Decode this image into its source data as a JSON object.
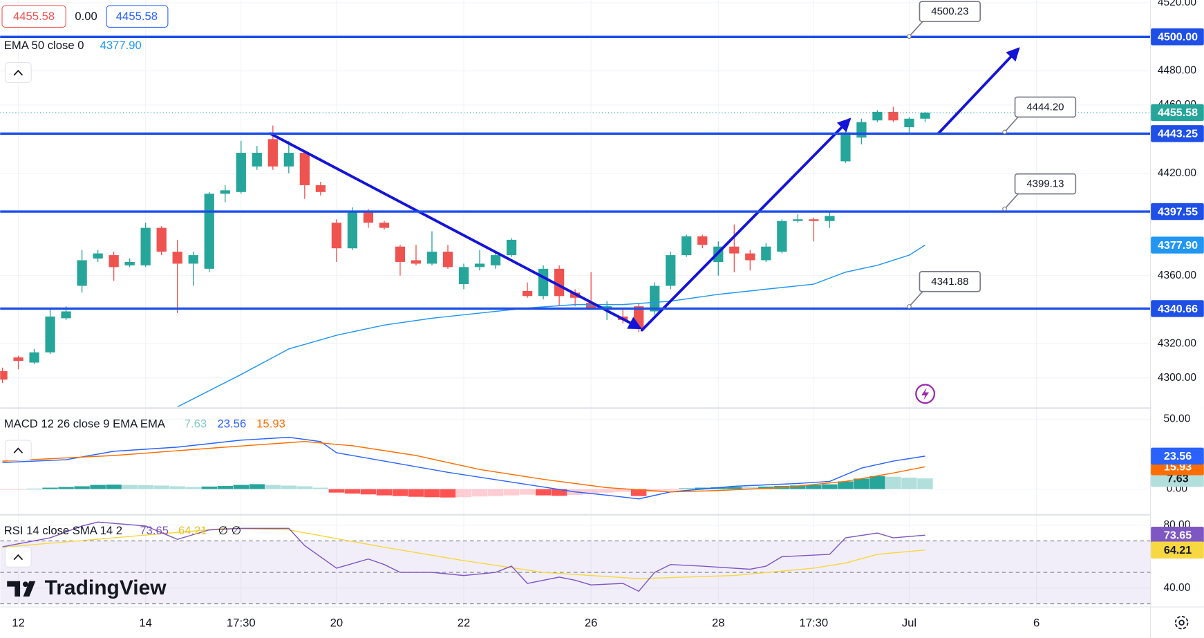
{
  "toolbar": {
    "open_label": "4455.58",
    "change": "0.00",
    "close_label": "4455.58"
  },
  "logo": "TradingView",
  "chart_data": [
    {
      "type": "candlestick",
      "xlim": [
        0,
        72
      ],
      "ylim": [
        4283,
        4521.6
      ],
      "yticks": [
        {
          "value": 4520,
          "label": "4520.00"
        },
        {
          "value": 4480,
          "label": "4480.00"
        },
        {
          "value": 4460,
          "label": "4460.00"
        },
        {
          "value": 4420,
          "label": "4420.00"
        },
        {
          "value": 4360,
          "label": "4360.00"
        },
        {
          "value": 4320,
          "label": "4320.00"
        },
        {
          "value": 4300,
          "label": "4300.00"
        }
      ],
      "xticks": [
        {
          "value": 1,
          "label": "12"
        },
        {
          "value": 9,
          "label": "14"
        },
        {
          "value": 15,
          "label": "17:30"
        },
        {
          "value": 21,
          "label": "20"
        },
        {
          "value": 29,
          "label": "22"
        },
        {
          "value": 37,
          "label": "26"
        },
        {
          "value": 45,
          "label": "28"
        },
        {
          "value": 51,
          "label": "17:30"
        },
        {
          "value": 57,
          "label": "Jul"
        },
        {
          "value": 65,
          "label": "6"
        }
      ],
      "grid": true,
      "up_color": "#26a69a",
      "down_color": "#ef5350",
      "x": [
        0,
        1,
        2,
        3,
        4,
        5,
        6,
        7,
        8,
        9,
        10,
        11,
        12,
        13,
        14,
        15,
        16,
        17,
        18,
        19,
        20,
        21,
        22,
        23,
        24,
        25,
        26,
        27,
        28,
        29,
        30,
        31,
        32,
        33,
        34,
        35,
        36,
        37,
        38,
        39,
        40,
        41,
        42,
        43,
        44,
        45,
        46,
        47,
        48,
        49,
        50,
        51,
        52,
        53,
        54,
        55,
        56,
        57,
        58
      ],
      "open": [
        4304,
        4312,
        4309,
        4315,
        4335,
        4354,
        4370,
        4372,
        4366,
        4366,
        4388,
        4374,
        4367,
        4364,
        4408,
        4409,
        4424,
        4440,
        4424,
        4432,
        4413,
        4391,
        4376,
        4397,
        4391,
        4377,
        4369,
        4367,
        4374,
        4355,
        4365,
        4366,
        4372,
        4351,
        4348,
        4364,
        4350,
        4344,
        4340,
        4336,
        4342,
        4339,
        4354,
        4372,
        4383,
        4368,
        4377,
        4373,
        4369,
        4374,
        4392,
        4393,
        4392,
        4427,
        4441,
        4451,
        4456,
        4447,
        4452
      ],
      "high": [
        4306,
        4313,
        4317,
        4340,
        4342,
        4375,
        4375,
        4374,
        4370,
        4391,
        4389,
        4381,
        4374,
        4409,
        4413,
        4439,
        4436,
        4448,
        4439,
        4433,
        4415,
        4393,
        4400,
        4399,
        4392,
        4378,
        4378,
        4386,
        4378,
        4367,
        4375,
        4374,
        4382,
        4356,
        4366,
        4366,
        4352,
        4362,
        4345,
        4341,
        4344,
        4356,
        4374,
        4384,
        4384,
        4380,
        4390,
        4375,
        4379,
        4393,
        4396,
        4394,
        4397,
        4447,
        4452,
        4457,
        4459,
        4453,
        4456
      ],
      "low": [
        4297,
        4305,
        4308,
        4314,
        4334,
        4350,
        4368,
        4357,
        4365,
        4365,
        4372,
        4338,
        4354,
        4362,
        4403,
        4408,
        4422,
        4422,
        4420,
        4405,
        4407,
        4368,
        4375,
        4388,
        4387,
        4360,
        4366,
        4366,
        4364,
        4352,
        4363,
        4364,
        4371,
        4347,
        4346,
        4342,
        4342,
        4340,
        4334,
        4332,
        4327,
        4337,
        4352,
        4371,
        4376,
        4360,
        4362,
        4363,
        4368,
        4373,
        4391,
        4380,
        4388,
        4426,
        4437,
        4450,
        4450,
        4443,
        4450
      ],
      "close": [
        4299,
        4310,
        4315,
        4336,
        4339,
        4369,
        4373,
        4365,
        4368,
        4388,
        4374,
        4367,
        4372,
        4408,
        4410,
        4432,
        4432,
        4424,
        4432,
        4413,
        4409,
        4376,
        4398,
        4391,
        4388,
        4368,
        4367,
        4374,
        4365,
        4365,
        4367,
        4372,
        4381,
        4348,
        4364,
        4348,
        4347,
        4341,
        4342,
        4334,
        4329,
        4354,
        4372,
        4383,
        4378,
        4377,
        4373,
        4369,
        4377,
        4392,
        4393,
        4392,
        4395,
        4444,
        4450,
        4456,
        4451,
        4452,
        4455.58
      ],
      "ema": {
        "label": "EMA 50 close 0",
        "color": "#2196f3",
        "x": [
          11,
          15,
          18,
          21,
          24,
          27,
          30,
          33,
          36,
          39,
          42,
          45,
          48,
          51,
          53,
          55,
          57,
          58
        ],
        "values": [
          4283,
          4302,
          4317,
          4325,
          4331,
          4335,
          4338,
          4341,
          4343,
          4343,
          4345,
          4349,
          4352,
          4355,
          4362,
          4366,
          4372,
          4377.9
        ],
        "last": {
          "value": 4377.9,
          "label": "4377.90"
        }
      },
      "current": {
        "value": 4455.58,
        "label": "4455.58"
      },
      "level_color": "#1e4fe6",
      "levels": [
        {
          "value": 4500,
          "label": "4500.00"
        },
        {
          "value": 4443.25,
          "label": "4443.25"
        },
        {
          "value": 4397.55,
          "label": "4397.55"
        },
        {
          "value": 4340.66,
          "label": "4340.66"
        }
      ],
      "callouts": [
        {
          "x": 57,
          "value": 4500.23,
          "label": "4500.23"
        },
        {
          "x": 63,
          "value": 4444.2,
          "label": "4444.20"
        },
        {
          "x": 63,
          "value": 4399.13,
          "label": "4399.13"
        },
        {
          "x": 57,
          "value": 4341.88,
          "label": "4341.88"
        }
      ]
    },
    {
      "type": "macd",
      "label": "MACD 12 26 close 9 EMA EMA",
      "xlim": [
        0,
        72
      ],
      "ylim": [
        -17,
        57.1
      ],
      "yticks": [
        {
          "value": 50,
          "label": "50.00"
        },
        {
          "value": 0,
          "label": "0.00"
        }
      ],
      "histogram": {
        "x": [
          0,
          1,
          2,
          3,
          4,
          5,
          6,
          7,
          8,
          9,
          10,
          11,
          12,
          13,
          14,
          15,
          16,
          17,
          18,
          19,
          20,
          21,
          22,
          23,
          24,
          25,
          26,
          27,
          28,
          29,
          30,
          31,
          32,
          33,
          34,
          35,
          36,
          37,
          38,
          39,
          40,
          41,
          42,
          43,
          44,
          45,
          46,
          47,
          48,
          49,
          50,
          51,
          52,
          53,
          54,
          55,
          56,
          57,
          58
        ],
        "values": [
          -0.5,
          -0.5,
          0.3,
          1,
          1.5,
          2,
          3,
          3.2,
          3,
          2.8,
          2.5,
          2,
          1.5,
          1.8,
          2.2,
          3,
          3.5,
          3,
          2.5,
          2,
          1,
          -2.5,
          -3.2,
          -3.8,
          -4.5,
          -5,
          -5.5,
          -5.8,
          -6,
          -5.8,
          -5.3,
          -5,
          -4.5,
          -4,
          -4.5,
          -4.8,
          -4.2,
          -3.5,
          -2.5,
          -2,
          -5,
          -2,
          -1,
          0.5,
          1,
          1.3,
          1.5,
          1.4,
          1.8,
          2.2,
          2.6,
          3,
          3.4,
          5.5,
          7.5,
          9.3,
          8.8,
          8.2,
          7.63
        ],
        "colors": {
          "up_rising": "#26a69a",
          "up_falling": "#b2dfdb",
          "down_falling": "#ff5252",
          "down_rising": "#ffcdd2"
        }
      },
      "macd": {
        "color": "#2962ff",
        "x": [
          0,
          4,
          7,
          11,
          15,
          18,
          20,
          21,
          24,
          28,
          32,
          36,
          38,
          40,
          42,
          46,
          50,
          52,
          54,
          56,
          58
        ],
        "values": [
          19,
          21,
          27,
          30,
          35,
          37,
          34,
          26,
          20,
          12,
          5,
          -2,
          -4.4,
          -7,
          -2,
          2,
          4,
          5.5,
          15,
          20,
          23.56
        ]
      },
      "signal": {
        "color": "#ff6d00",
        "x": [
          0,
          7,
          14,
          19,
          22,
          26,
          30,
          34,
          38,
          42,
          45,
          49,
          53,
          56,
          58
        ],
        "values": [
          20,
          24,
          30,
          34,
          31,
          24,
          14,
          7,
          1,
          -2,
          -1,
          1,
          5.5,
          11.5,
          15.93
        ]
      }
    },
    {
      "type": "rsi",
      "label": "RSI 14 close SMA 14 2",
      "extra": "∅ ∅",
      "xlim": [
        0,
        72
      ],
      "ylim": [
        28.3,
        85.9
      ],
      "yticks": [
        {
          "value": 80,
          "label": "80.00"
        },
        {
          "value": 40,
          "label": "40.00"
        }
      ],
      "band": [
        30,
        70
      ],
      "middle": 50,
      "rsi": {
        "color": "#7e57c2",
        "x": [
          0,
          3,
          5,
          6,
          9,
          11,
          13,
          15,
          18,
          19,
          21,
          23,
          24,
          25,
          27,
          29,
          31,
          32,
          33,
          35,
          36,
          37,
          39,
          40,
          41,
          42,
          44,
          47,
          48,
          49,
          52,
          53,
          55,
          56,
          58
        ],
        "values": [
          66.3,
          72,
          79.5,
          82,
          79.5,
          71,
          77,
          78,
          78,
          67,
          52.7,
          58.5,
          55,
          50,
          50,
          48,
          50,
          54,
          43,
          47,
          45,
          42,
          43,
          38,
          50,
          55,
          54,
          52,
          54,
          60,
          61.5,
          72,
          75,
          72,
          73.65
        ]
      },
      "sma": {
        "color": "#f7d742",
        "x": [
          0,
          7,
          14,
          18,
          24,
          29,
          34,
          40,
          46,
          51,
          53,
          55,
          58
        ],
        "values": [
          66,
          72,
          78,
          77,
          66,
          57.5,
          50,
          46,
          48,
          52.7,
          56,
          61.5,
          64.21
        ]
      }
    }
  ]
}
